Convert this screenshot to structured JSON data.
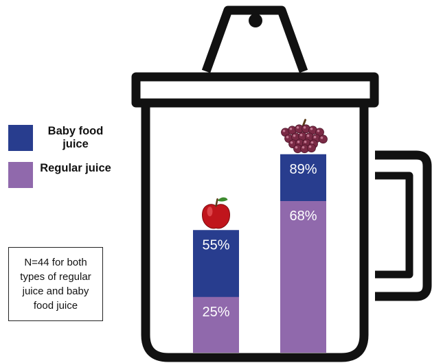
{
  "chart_data": {
    "type": "bar",
    "stacking": "overlay",
    "categories": [
      "apple",
      "grape"
    ],
    "series": [
      {
        "name": "Baby food juice",
        "values": [
          55,
          89
        ],
        "color": "#283d8e"
      },
      {
        "name": "Regular juice",
        "values": [
          25,
          68
        ],
        "color": "#9069ac"
      }
    ],
    "data_labels": [
      [
        "55%",
        "89%"
      ],
      [
        "25%",
        "68%"
      ]
    ],
    "category_icons": [
      "apple-icon",
      "grapes-icon"
    ],
    "ylim": [
      0,
      100
    ],
    "grid": false,
    "legend_position": "left",
    "annotation": "N=44 for both types of regular juice and baby food juice"
  },
  "legend": {
    "baby_label": "Baby food juice",
    "regular_label": "Regular juice"
  },
  "note": {
    "text": "N=44 for both types of regular juice and baby food juice"
  },
  "colors": {
    "baby": "#283d8e",
    "regular": "#9069ac",
    "outline": "#111111",
    "label": "#ffffff"
  }
}
